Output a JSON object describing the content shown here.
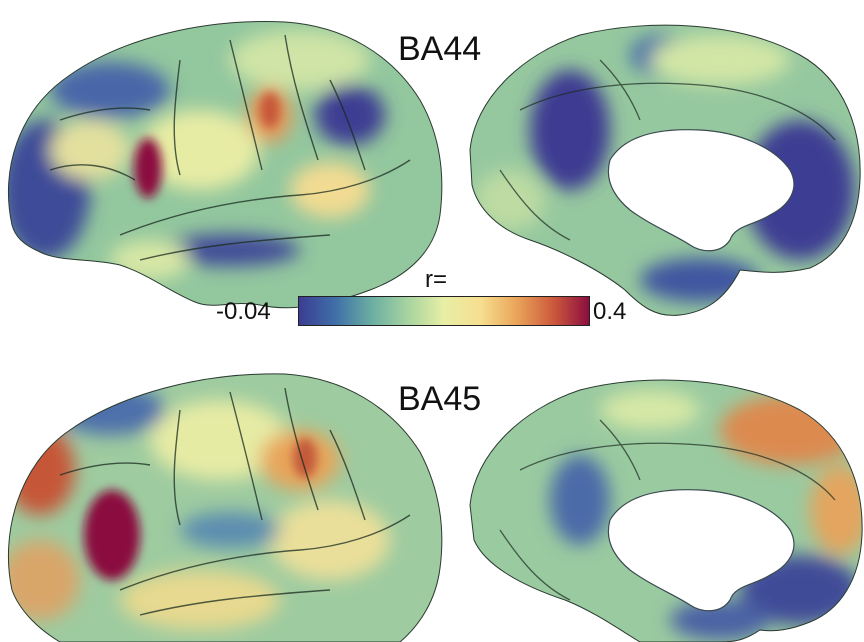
{
  "figure": {
    "panels": [
      {
        "title": "BA44"
      },
      {
        "title": "BA45"
      }
    ],
    "colorbar": {
      "title": "r=",
      "min_label": "-0.04",
      "max_label": "0.4",
      "min_value": -0.04,
      "max_value": 0.4,
      "colors": [
        "#3b3d92",
        "#3f6fa8",
        "#6aaea2",
        "#a7d4a0",
        "#e8eea6",
        "#f6df90",
        "#eaa55a",
        "#cd5a3c",
        "#8b0f3f"
      ]
    },
    "palette": {
      "low": "#3b3d92",
      "mid_low": "#6aaea2",
      "mid": "#e8eea6",
      "mid_high": "#eaa55a",
      "high": "#8b0f3f",
      "medial_wall": "#ffffff",
      "sulcus_line": "#1a2a20"
    }
  }
}
